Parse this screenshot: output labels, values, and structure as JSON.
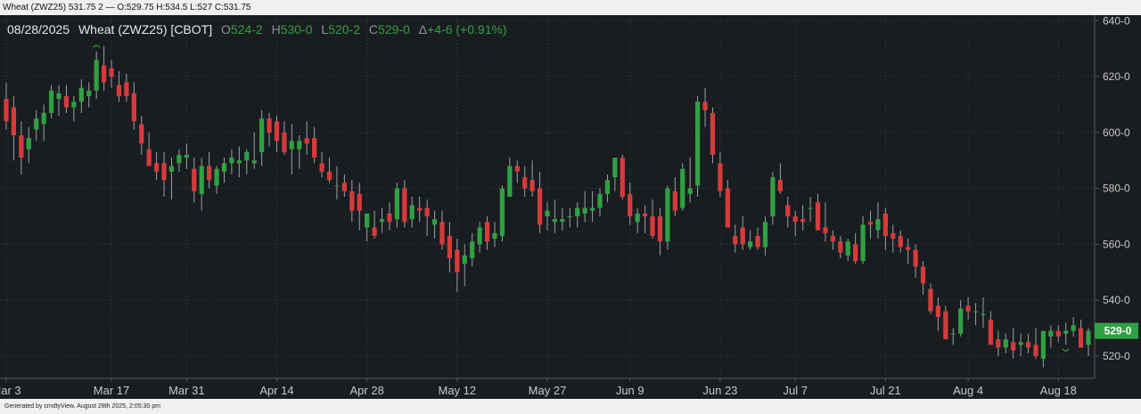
{
  "window": {
    "title": "Wheat (ZWZ25) 531.75 2 — O:529.75 H:534.5 L:527 C:531.75"
  },
  "footer": {
    "text": "Generated by cmdtyView, August 28th 2025, 2:05:30 pm"
  },
  "header": {
    "date": "08/28/2025",
    "symbol": "Wheat (ZWZ25) [CBOT]",
    "open_label": "O",
    "open": "524-2",
    "high_label": "H",
    "high": "530-0",
    "low_label": "L",
    "low": "520-2",
    "close_label": "C",
    "close": "529-0",
    "change_label": "Δ",
    "change": "+4-6 (+0.91%)"
  },
  "last_price_tag": "529-0",
  "colors": {
    "background": "#1a1d20",
    "up": "#2fa043",
    "down": "#d63b3b",
    "grid": "#3a3f44",
    "text": "#e6e6e6",
    "axis": "#c8c8c8",
    "header_green": "#2fa043"
  },
  "chart_data": {
    "type": "candlestick",
    "y_axis": {
      "ylim": [
        512,
        642
      ],
      "ticks": [
        520,
        540,
        560,
        580,
        600,
        620,
        640
      ],
      "tick_labels": [
        "520-0",
        "540-0",
        "560-0",
        "580-0",
        "600-0",
        "620-0",
        "640-0"
      ]
    },
    "x_axis": {
      "tick_labels": [
        "Mar 3",
        "Mar 17",
        "Mar 31",
        "Apr 14",
        "Apr 28",
        "May 12",
        "May 27",
        "Jun 9",
        "Jun 23",
        "Jul 7",
        "Jul 21",
        "Aug 4",
        "Aug 18"
      ],
      "tick_indices": [
        0,
        14,
        24,
        36,
        48,
        60,
        72,
        83,
        95,
        105,
        117,
        128,
        140
      ]
    },
    "candles": [
      {
        "o": 612,
        "h": 618,
        "l": 601,
        "c": 604
      },
      {
        "o": 609,
        "h": 613,
        "l": 590,
        "c": 599
      },
      {
        "o": 599,
        "h": 604,
        "l": 585,
        "c": 591
      },
      {
        "o": 594,
        "h": 602,
        "l": 589,
        "c": 598
      },
      {
        "o": 601,
        "h": 608,
        "l": 597,
        "c": 605
      },
      {
        "o": 603,
        "h": 610,
        "l": 597,
        "c": 607
      },
      {
        "o": 607,
        "h": 617,
        "l": 605,
        "c": 615
      },
      {
        "o": 612,
        "h": 617,
        "l": 606,
        "c": 614
      },
      {
        "o": 613,
        "h": 617,
        "l": 607,
        "c": 609
      },
      {
        "o": 609,
        "h": 613,
        "l": 604,
        "c": 611
      },
      {
        "o": 611,
        "h": 619,
        "l": 607,
        "c": 616
      },
      {
        "o": 613,
        "h": 618,
        "l": 609,
        "c": 615
      },
      {
        "o": 615,
        "h": 629,
        "l": 612,
        "c": 626
      },
      {
        "o": 624,
        "h": 631,
        "l": 615,
        "c": 618
      },
      {
        "o": 623,
        "h": 626,
        "l": 616,
        "c": 620
      },
      {
        "o": 617,
        "h": 622,
        "l": 611,
        "c": 613
      },
      {
        "o": 618,
        "h": 621,
        "l": 611,
        "c": 613
      },
      {
        "o": 614,
        "h": 618,
        "l": 601,
        "c": 604
      },
      {
        "o": 603,
        "h": 606,
        "l": 592,
        "c": 596
      },
      {
        "o": 594,
        "h": 600,
        "l": 588,
        "c": 588
      },
      {
        "o": 589,
        "h": 593,
        "l": 583,
        "c": 586
      },
      {
        "o": 589,
        "h": 593,
        "l": 577,
        "c": 583
      },
      {
        "o": 586,
        "h": 591,
        "l": 576,
        "c": 588
      },
      {
        "o": 589,
        "h": 594,
        "l": 586,
        "c": 592
      },
      {
        "o": 591,
        "h": 596,
        "l": 587,
        "c": 592
      },
      {
        "o": 587,
        "h": 591,
        "l": 575,
        "c": 579
      },
      {
        "o": 578,
        "h": 591,
        "l": 572,
        "c": 588
      },
      {
        "o": 588,
        "h": 593,
        "l": 580,
        "c": 583
      },
      {
        "o": 581,
        "h": 588,
        "l": 578,
        "c": 587
      },
      {
        "o": 586,
        "h": 591,
        "l": 582,
        "c": 589
      },
      {
        "o": 589,
        "h": 594,
        "l": 585,
        "c": 591
      },
      {
        "o": 589,
        "h": 595,
        "l": 584,
        "c": 590
      },
      {
        "o": 590,
        "h": 594,
        "l": 585,
        "c": 593
      },
      {
        "o": 589,
        "h": 600,
        "l": 587,
        "c": 590
      },
      {
        "o": 593,
        "h": 608,
        "l": 588,
        "c": 605
      },
      {
        "o": 605,
        "h": 607,
        "l": 595,
        "c": 600
      },
      {
        "o": 604,
        "h": 606,
        "l": 593,
        "c": 597
      },
      {
        "o": 600,
        "h": 604,
        "l": 592,
        "c": 593
      },
      {
        "o": 594,
        "h": 603,
        "l": 585,
        "c": 597
      },
      {
        "o": 594,
        "h": 599,
        "l": 587,
        "c": 597
      },
      {
        "o": 598,
        "h": 604,
        "l": 592,
        "c": 596
      },
      {
        "o": 598,
        "h": 602,
        "l": 589,
        "c": 591
      },
      {
        "o": 589,
        "h": 593,
        "l": 584,
        "c": 586
      },
      {
        "o": 586,
        "h": 591,
        "l": 582,
        "c": 583
      },
      {
        "o": 581,
        "h": 588,
        "l": 576,
        "c": 581
      },
      {
        "o": 582,
        "h": 585,
        "l": 577,
        "c": 579
      },
      {
        "o": 579,
        "h": 583,
        "l": 568,
        "c": 572
      },
      {
        "o": 578,
        "h": 582,
        "l": 565,
        "c": 572
      },
      {
        "o": 566,
        "h": 570,
        "l": 561,
        "c": 571
      },
      {
        "o": 566,
        "h": 572,
        "l": 562,
        "c": 563
      },
      {
        "o": 568,
        "h": 573,
        "l": 564,
        "c": 569
      },
      {
        "o": 571,
        "h": 575,
        "l": 565,
        "c": 568
      },
      {
        "o": 569,
        "h": 582,
        "l": 566,
        "c": 580
      },
      {
        "o": 580,
        "h": 583,
        "l": 566,
        "c": 568
      },
      {
        "o": 569,
        "h": 577,
        "l": 566,
        "c": 574
      },
      {
        "o": 573,
        "h": 577,
        "l": 568,
        "c": 572
      },
      {
        "o": 573,
        "h": 576,
        "l": 563,
        "c": 570
      },
      {
        "o": 567,
        "h": 572,
        "l": 562,
        "c": 569
      },
      {
        "o": 568,
        "h": 572,
        "l": 558,
        "c": 560
      },
      {
        "o": 563,
        "h": 568,
        "l": 550,
        "c": 555
      },
      {
        "o": 558,
        "h": 562,
        "l": 543,
        "c": 550
      },
      {
        "o": 553,
        "h": 560,
        "l": 545,
        "c": 556
      },
      {
        "o": 555,
        "h": 564,
        "l": 552,
        "c": 561
      },
      {
        "o": 560,
        "h": 568,
        "l": 557,
        "c": 566
      },
      {
        "o": 568,
        "h": 570,
        "l": 558,
        "c": 561
      },
      {
        "o": 562,
        "h": 568,
        "l": 559,
        "c": 564
      },
      {
        "o": 563,
        "h": 581,
        "l": 561,
        "c": 580
      },
      {
        "o": 577,
        "h": 591,
        "l": 577,
        "c": 588
      },
      {
        "o": 588,
        "h": 590,
        "l": 582,
        "c": 586
      },
      {
        "o": 584,
        "h": 588,
        "l": 577,
        "c": 580
      },
      {
        "o": 583,
        "h": 590,
        "l": 577,
        "c": 579
      },
      {
        "o": 580,
        "h": 586,
        "l": 564,
        "c": 567
      },
      {
        "o": 570,
        "h": 575,
        "l": 565,
        "c": 572
      },
      {
        "o": 568,
        "h": 576,
        "l": 564,
        "c": 569
      },
      {
        "o": 568,
        "h": 573,
        "l": 565,
        "c": 569
      },
      {
        "o": 570,
        "h": 573,
        "l": 566,
        "c": 570
      },
      {
        "o": 570,
        "h": 575,
        "l": 566,
        "c": 573
      },
      {
        "o": 571,
        "h": 579,
        "l": 568,
        "c": 573
      },
      {
        "o": 572,
        "h": 579,
        "l": 568,
        "c": 573
      },
      {
        "o": 573,
        "h": 580,
        "l": 570,
        "c": 578
      },
      {
        "o": 578,
        "h": 585,
        "l": 575,
        "c": 583
      },
      {
        "o": 584,
        "h": 591,
        "l": 579,
        "c": 591
      },
      {
        "o": 591,
        "h": 592,
        "l": 576,
        "c": 577
      },
      {
        "o": 578,
        "h": 582,
        "l": 567,
        "c": 570
      },
      {
        "o": 568,
        "h": 573,
        "l": 564,
        "c": 571
      },
      {
        "o": 571,
        "h": 574,
        "l": 564,
        "c": 570
      },
      {
        "o": 570,
        "h": 576,
        "l": 562,
        "c": 563
      },
      {
        "o": 570,
        "h": 573,
        "l": 556,
        "c": 561
      },
      {
        "o": 561,
        "h": 581,
        "l": 558,
        "c": 580
      },
      {
        "o": 579,
        "h": 584,
        "l": 570,
        "c": 572
      },
      {
        "o": 573,
        "h": 589,
        "l": 572,
        "c": 587
      },
      {
        "o": 578,
        "h": 591,
        "l": 575,
        "c": 580
      },
      {
        "o": 581,
        "h": 613,
        "l": 577,
        "c": 611
      },
      {
        "o": 611,
        "h": 616,
        "l": 602,
        "c": 608
      },
      {
        "o": 607,
        "h": 609,
        "l": 589,
        "c": 592
      },
      {
        "o": 589,
        "h": 593,
        "l": 577,
        "c": 579
      },
      {
        "o": 580,
        "h": 583,
        "l": 566,
        "c": 566
      },
      {
        "o": 563,
        "h": 567,
        "l": 557,
        "c": 560
      },
      {
        "o": 566,
        "h": 570,
        "l": 558,
        "c": 560
      },
      {
        "o": 559,
        "h": 565,
        "l": 558,
        "c": 561
      },
      {
        "o": 563,
        "h": 566,
        "l": 558,
        "c": 559
      },
      {
        "o": 559,
        "h": 570,
        "l": 556,
        "c": 568
      },
      {
        "o": 570,
        "h": 586,
        "l": 567,
        "c": 584
      },
      {
        "o": 583,
        "h": 589,
        "l": 578,
        "c": 579
      },
      {
        "o": 574,
        "h": 577,
        "l": 566,
        "c": 570
      },
      {
        "o": 570,
        "h": 572,
        "l": 563,
        "c": 568
      },
      {
        "o": 569,
        "h": 574,
        "l": 565,
        "c": 568
      },
      {
        "o": 573,
        "h": 577,
        "l": 568,
        "c": 573
      },
      {
        "o": 575,
        "h": 578,
        "l": 566,
        "c": 565
      },
      {
        "o": 566,
        "h": 575,
        "l": 561,
        "c": 564
      },
      {
        "o": 563,
        "h": 565,
        "l": 558,
        "c": 561
      },
      {
        "o": 561,
        "h": 563,
        "l": 555,
        "c": 557
      },
      {
        "o": 556,
        "h": 562,
        "l": 554,
        "c": 561
      },
      {
        "o": 560,
        "h": 564,
        "l": 553,
        "c": 554
      },
      {
        "o": 554,
        "h": 570,
        "l": 553,
        "c": 567
      },
      {
        "o": 568,
        "h": 572,
        "l": 562,
        "c": 567
      },
      {
        "o": 565,
        "h": 575,
        "l": 562,
        "c": 569
      },
      {
        "o": 571,
        "h": 573,
        "l": 558,
        "c": 563
      },
      {
        "o": 564,
        "h": 567,
        "l": 557,
        "c": 562
      },
      {
        "o": 563,
        "h": 565,
        "l": 557,
        "c": 559
      },
      {
        "o": 559,
        "h": 562,
        "l": 553,
        "c": 558
      },
      {
        "o": 558,
        "h": 560,
        "l": 548,
        "c": 552
      },
      {
        "o": 552,
        "h": 554,
        "l": 542,
        "c": 546
      },
      {
        "o": 544,
        "h": 546,
        "l": 535,
        "c": 536
      },
      {
        "o": 538,
        "h": 541,
        "l": 529,
        "c": 534
      },
      {
        "o": 536,
        "h": 538,
        "l": 526,
        "c": 526
      },
      {
        "o": 528,
        "h": 530,
        "l": 524,
        "c": 528
      },
      {
        "o": 528,
        "h": 540,
        "l": 527,
        "c": 537
      },
      {
        "o": 538,
        "h": 541,
        "l": 533,
        "c": 536
      },
      {
        "o": 536,
        "h": 539,
        "l": 531,
        "c": 536
      },
      {
        "o": 535,
        "h": 541,
        "l": 530,
        "c": 535
      },
      {
        "o": 533,
        "h": 536,
        "l": 524,
        "c": 524
      },
      {
        "o": 526,
        "h": 529,
        "l": 520,
        "c": 523
      },
      {
        "o": 523,
        "h": 528,
        "l": 521,
        "c": 526
      },
      {
        "o": 525,
        "h": 530,
        "l": 519,
        "c": 522
      },
      {
        "o": 524,
        "h": 528,
        "l": 520,
        "c": 525
      },
      {
        "o": 525,
        "h": 528,
        "l": 521,
        "c": 523
      },
      {
        "o": 524,
        "h": 530,
        "l": 519,
        "c": 520
      },
      {
        "o": 519,
        "h": 528,
        "l": 516,
        "c": 529
      },
      {
        "o": 527,
        "h": 531,
        "l": 523,
        "c": 529
      },
      {
        "o": 529,
        "h": 531,
        "l": 525,
        "c": 527
      },
      {
        "o": 528,
        "h": 532,
        "l": 524,
        "c": 529
      },
      {
        "o": 529,
        "h": 534,
        "l": 527,
        "c": 531
      },
      {
        "o": 530,
        "h": 533,
        "l": 523,
        "c": 523
      },
      {
        "o": 524,
        "h": 530,
        "l": 520,
        "c": 529
      }
    ],
    "markers": [
      {
        "type": "high",
        "index": 12
      },
      {
        "type": "low",
        "index": 141
      }
    ]
  }
}
